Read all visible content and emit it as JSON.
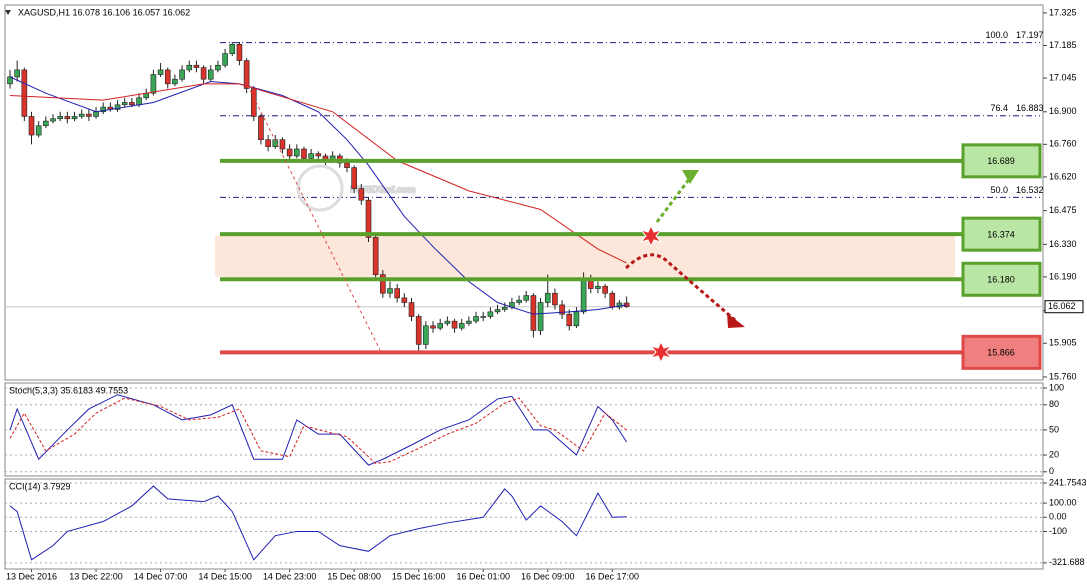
{
  "chart_data": [
    {
      "type": "candlestick",
      "title": "XAGUSD,H1  16.078 16.106 16.057 16.062",
      "watermark": "FOREXimf.com",
      "categories": [
        null,
        null,
        null,
        "13 Dec 2016",
        null,
        null,
        null,
        null,
        null,
        null,
        null,
        null,
        "13 Dec 22:00",
        null,
        null,
        null,
        null,
        null,
        null,
        null,
        null,
        "14 Dec 07:00",
        null,
        null,
        null,
        null,
        null,
        null,
        null,
        null,
        "14 Dec 15:00",
        null,
        null,
        null,
        null,
        null,
        null,
        null,
        null,
        "14 Dec 23:00",
        null,
        null,
        null,
        null,
        null,
        null,
        null,
        null,
        "15 Dec 08:00",
        null,
        null,
        null,
        null,
        null,
        null,
        null,
        null,
        "15 Dec 16:00",
        null,
        null,
        null,
        null,
        null,
        null,
        null,
        null,
        "16 Dec 01:00",
        null,
        null,
        null,
        null,
        null,
        null,
        null,
        null,
        "16 Dec 09:00",
        null,
        null,
        null,
        null,
        null,
        null,
        null,
        null,
        "16 Dec 17:00",
        null,
        null
      ],
      "open": [
        17.02,
        17.05,
        17.08,
        16.88,
        16.8,
        16.84,
        16.86,
        16.87,
        16.88,
        16.87,
        16.88,
        16.89,
        16.88,
        16.9,
        16.92,
        16.91,
        16.93,
        16.94,
        16.93,
        16.96,
        16.98,
        17.06,
        17.08,
        17.02,
        17.04,
        17.08,
        17.1,
        17.09,
        17.04,
        17.08,
        17.1,
        17.15,
        17.19,
        17.12,
        17.0,
        16.88,
        16.78,
        16.75,
        16.78,
        16.74,
        16.71,
        16.74,
        16.7,
        16.72,
        16.71,
        16.69,
        16.71,
        16.68,
        16.66,
        16.57,
        16.52,
        16.36,
        16.2,
        16.12,
        16.14,
        16.1,
        16.08,
        16.02,
        15.9,
        15.98,
        15.97,
        15.99,
        16.0,
        15.97,
        15.99,
        16.0,
        16.02,
        16.02,
        16.04,
        16.05,
        16.06,
        16.08,
        16.09,
        16.11,
        15.96,
        16.08,
        16.12,
        16.07,
        16.03,
        15.98,
        16.04,
        16.18,
        16.14,
        16.15,
        16.12,
        16.06,
        16.078
      ],
      "high": [
        17.08,
        17.12,
        17.09,
        16.9,
        16.86,
        16.88,
        16.89,
        16.9,
        16.9,
        16.9,
        16.91,
        16.91,
        16.92,
        16.94,
        16.94,
        16.95,
        16.96,
        16.96,
        16.98,
        17.0,
        17.08,
        17.11,
        17.09,
        17.06,
        17.1,
        17.12,
        17.12,
        17.1,
        17.1,
        17.12,
        17.17,
        17.2,
        17.2,
        17.13,
        17.01,
        16.89,
        16.8,
        16.8,
        16.79,
        16.76,
        16.76,
        16.75,
        16.74,
        16.73,
        16.72,
        16.73,
        16.72,
        16.7,
        16.67,
        16.59,
        16.53,
        16.37,
        16.22,
        16.17,
        16.16,
        16.12,
        16.1,
        16.03,
        16.0,
        16.0,
        16.01,
        16.02,
        16.01,
        16.01,
        16.02,
        16.04,
        16.04,
        16.06,
        16.07,
        16.08,
        16.1,
        16.11,
        16.13,
        16.12,
        16.1,
        16.2,
        16.14,
        16.09,
        16.05,
        16.06,
        16.21,
        16.2,
        16.17,
        16.16,
        16.13,
        16.09,
        16.106
      ],
      "low": [
        17.0,
        17.03,
        16.86,
        16.76,
        16.79,
        16.83,
        16.85,
        16.86,
        16.85,
        16.86,
        16.87,
        16.86,
        16.87,
        16.89,
        16.9,
        16.9,
        16.92,
        16.92,
        16.92,
        16.95,
        16.97,
        17.05,
        17.0,
        17.01,
        17.03,
        17.07,
        17.07,
        17.02,
        17.03,
        17.07,
        17.09,
        17.14,
        17.1,
        16.98,
        16.86,
        16.76,
        16.73,
        16.74,
        16.72,
        16.69,
        16.7,
        16.68,
        16.69,
        16.69,
        16.67,
        16.68,
        16.66,
        16.64,
        16.55,
        16.5,
        16.34,
        16.18,
        16.1,
        16.1,
        16.08,
        16.06,
        16.0,
        15.87,
        15.88,
        15.95,
        15.96,
        15.98,
        15.95,
        15.96,
        15.98,
        15.99,
        16.0,
        16.01,
        16.03,
        16.04,
        16.05,
        16.07,
        16.08,
        15.93,
        15.94,
        16.06,
        16.05,
        16.01,
        15.96,
        15.97,
        16.03,
        16.12,
        16.12,
        16.1,
        16.05,
        16.05,
        16.057
      ],
      "close": [
        17.05,
        17.08,
        16.88,
        16.8,
        16.84,
        16.86,
        16.87,
        16.88,
        16.87,
        16.88,
        16.89,
        16.88,
        16.9,
        16.92,
        16.91,
        16.93,
        16.94,
        16.93,
        16.96,
        16.98,
        17.06,
        17.08,
        17.02,
        17.04,
        17.08,
        17.1,
        17.09,
        17.04,
        17.08,
        17.1,
        17.15,
        17.19,
        17.12,
        17.0,
        16.88,
        16.78,
        16.75,
        16.78,
        16.74,
        16.71,
        16.74,
        16.7,
        16.72,
        16.71,
        16.69,
        16.71,
        16.68,
        16.66,
        16.57,
        16.52,
        16.36,
        16.2,
        16.12,
        16.14,
        16.1,
        16.08,
        16.02,
        15.9,
        15.98,
        15.97,
        15.99,
        16.0,
        15.97,
        15.99,
        16.0,
        16.02,
        16.02,
        16.04,
        16.05,
        16.06,
        16.08,
        16.09,
        16.11,
        15.96,
        16.08,
        16.12,
        16.07,
        16.03,
        15.98,
        16.04,
        16.18,
        16.14,
        16.15,
        16.12,
        16.06,
        16.078,
        16.062
      ],
      "up_color": "#3aa655",
      "down_color": "#d9342b",
      "lines": [
        {
          "color": "#1f1fb4",
          "x": [
            0,
            5,
            12,
            20,
            28,
            32,
            38,
            43,
            47,
            50,
            55,
            59,
            64,
            68,
            73,
            78,
            82,
            86
          ],
          "values": [
            17.05,
            16.98,
            16.9,
            16.94,
            17.03,
            17.02,
            16.97,
            16.9,
            16.78,
            16.67,
            16.45,
            16.32,
            16.17,
            16.08,
            16.03,
            16.04,
            16.05,
            16.07
          ]
        },
        {
          "color": "#d42020",
          "x": [
            0,
            13,
            27,
            32,
            45,
            54,
            64,
            74,
            82,
            86
          ],
          "values": [
            16.97,
            16.95,
            17.02,
            17.02,
            16.9,
            16.69,
            16.56,
            16.48,
            16.31,
            16.25
          ]
        }
      ],
      "zone": [
        16.19,
        16.37
      ],
      "fib_levels": [
        {
          "ratio": {
            "value": 100,
            "label": "100.0"
          },
          "price": 17.197
        },
        {
          "ratio": 76.4,
          "price": 16.883
        },
        {
          "ratio": {
            "value": 50,
            "label": "50.0"
          },
          "price": 16.532
        }
      ],
      "levels": [
        {
          "price": 16.689,
          "color": "#5aa02c",
          "fill": "#b9e6a4"
        },
        {
          "price": 16.374,
          "color": "#5aa02c",
          "fill": "#b9e6a4"
        },
        {
          "price": {
            "value": 16.18,
            "label": "16.180"
          },
          "color": "#5aa02c",
          "fill": "#b9e6a4"
        },
        {
          "price": 15.866,
          "color": "#e04848",
          "fill": "#f08080"
        }
      ],
      "last_price": 16.062,
      "ylim": [
        15.747,
        17.359
      ],
      "yticks": [
        17.325,
        17.185,
        17.045,
        {
          "value": 16.9,
          "label": "16.900"
        },
        {
          "value": 16.76,
          "label": "16.760"
        },
        {
          "value": 16.62,
          "label": "16.620"
        },
        16.475,
        {
          "value": 16.33,
          "label": "16.330"
        },
        {
          "value": 16.19,
          "label": "16.190"
        },
        16.045,
        15.905,
        {
          "value": 15.76,
          "label": "15.760"
        }
      ],
      "grid": false
    },
    {
      "type": "line",
      "title": "Stoch(5,3,3) 35.6183 49.7553",
      "series": [
        {
          "color": "#1f1fb4",
          "dash": false,
          "x": [
            0,
            1,
            4,
            8,
            11,
            15,
            20,
            24,
            28,
            31,
            34,
            38,
            40,
            43,
            46,
            50,
            52,
            56,
            60,
            64,
            68,
            70,
            73,
            75,
            79,
            82,
            84,
            86
          ],
          "values": [
            50,
            75,
            15,
            50,
            75,
            92,
            80,
            62,
            68,
            80,
            15,
            15,
            62,
            45,
            45,
            8,
            15,
            32,
            50,
            62,
            87,
            90,
            50,
            50,
            20,
            78,
            62,
            35.6183
          ]
        },
        {
          "color": "#d42020",
          "dash": true,
          "x": [
            0,
            2,
            5,
            9,
            12,
            16,
            21,
            25,
            29,
            32,
            35,
            39,
            41,
            44,
            47,
            51,
            53,
            57,
            61,
            65,
            69,
            71,
            74,
            76,
            80,
            83,
            86
          ],
          "values": [
            40,
            70,
            25,
            45,
            70,
            88,
            78,
            62,
            65,
            75,
            25,
            18,
            55,
            48,
            42,
            10,
            12,
            28,
            45,
            58,
            82,
            88,
            55,
            50,
            25,
            70,
            49.7553
          ]
        }
      ],
      "ylim": [
        -5,
        106
      ],
      "yticks": [
        100,
        80,
        50,
        20,
        0
      ],
      "grid": true
    },
    {
      "type": "line",
      "title": "CCI(14) 3.7929",
      "series": [
        {
          "color": "#1f1fb4",
          "dash": false,
          "x": [
            0,
            1,
            3,
            6,
            8,
            13,
            17,
            20,
            22,
            27,
            29,
            31,
            34,
            37,
            40,
            43,
            46,
            50,
            53,
            57,
            61,
            66,
            69,
            70,
            72,
            74,
            77,
            79,
            82,
            84,
            86
          ],
          "values": [
            80,
            40,
            -300,
            -200,
            -100,
            -30,
            80,
            220,
            130,
            110,
            150,
            40,
            -300,
            -130,
            -100,
            -100,
            -200,
            -240,
            -130,
            -80,
            -40,
            0,
            200,
            150,
            -20,
            80,
            -30,
            -130,
            170,
            0,
            3.7929
          ]
        }
      ],
      "ylim": [
        -365,
        270
      ],
      "yticks": [
        241.7543,
        {
          "value": 100,
          "label": "100.00"
        },
        {
          "value": 0,
          "label": "0.00"
        },
        -100,
        {
          "value": -321.688,
          "label": "-321.688"
        }
      ],
      "grid": true
    }
  ]
}
